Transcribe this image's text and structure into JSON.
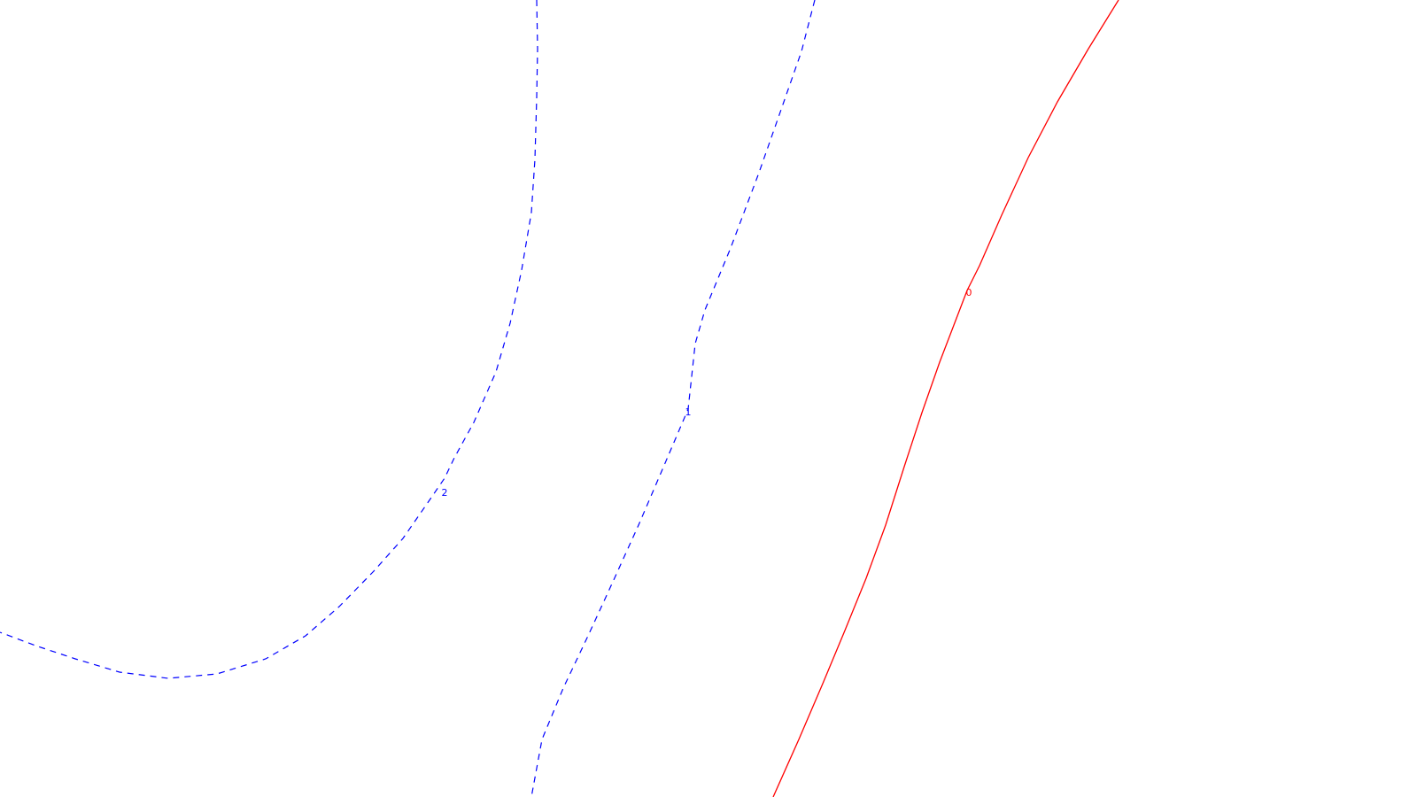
{
  "chart_data": {
    "type": "contour",
    "title": "",
    "xlabel": "",
    "ylabel": "",
    "grid": false,
    "legend": "none",
    "axes_visible": false,
    "levels": [
      {
        "level": 2,
        "label": "2",
        "color": "#0000ff",
        "line_style": "dashed"
      },
      {
        "level": 1,
        "label": "1",
        "color": "#0000ff",
        "line_style": "dashed"
      },
      {
        "level": 0,
        "label": "0",
        "color": "#ff0000",
        "line_style": "solid"
      }
    ]
  }
}
